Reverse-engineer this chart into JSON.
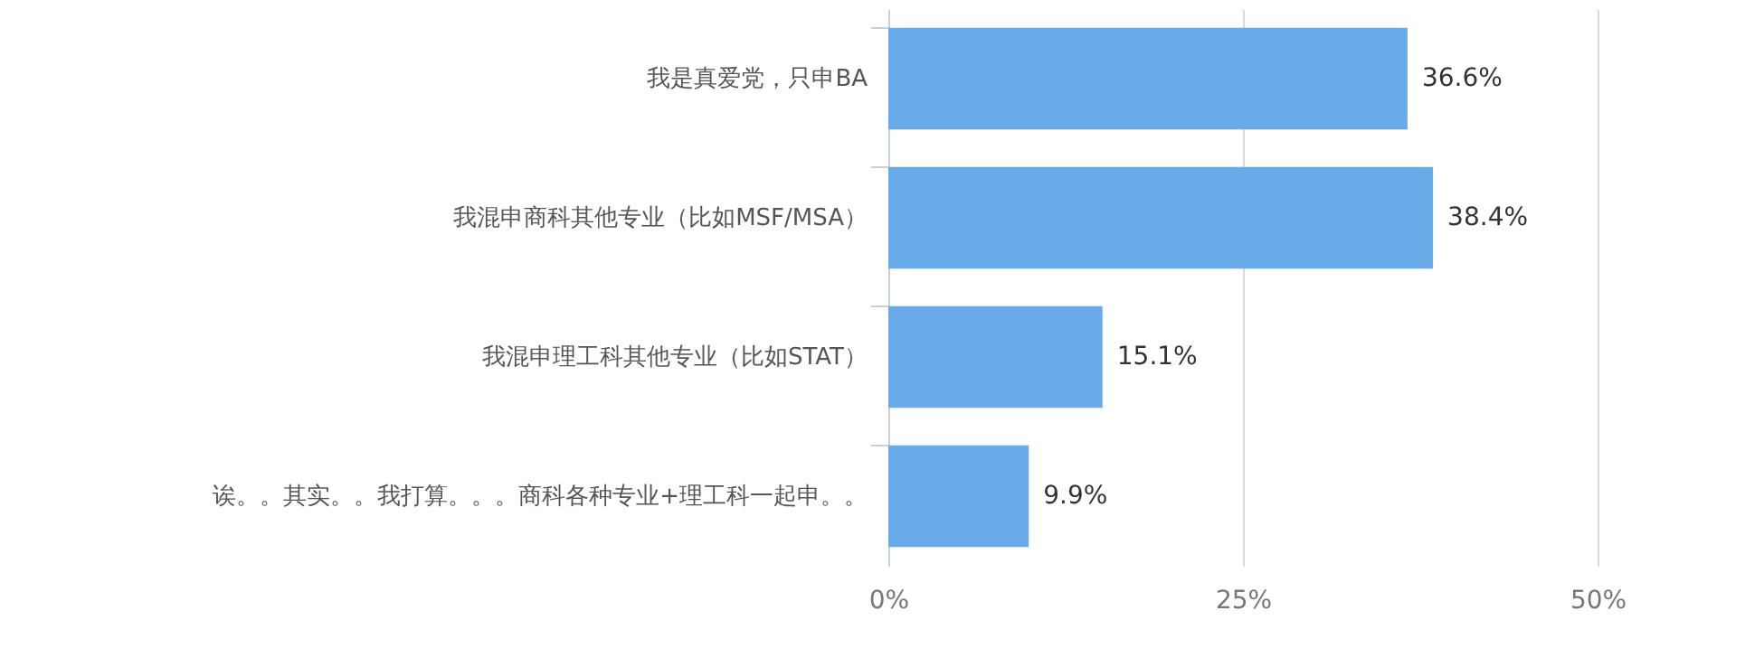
{
  "chart_data": {
    "type": "bar",
    "orientation": "horizontal",
    "categories": [
      "我是真爱党，只申BA",
      "我混申商科其他专业（比如MSF/MSA）",
      "我混申理工科其他专业（比如STAT）",
      "诶。。其实。。我打算。。。商科各种专业+理工科一起申。。"
    ],
    "values": [
      36.6,
      38.4,
      15.1,
      9.9
    ],
    "value_labels": [
      "36.6%",
      "38.4%",
      "15.1%",
      "9.9%"
    ],
    "color": "#68abe8",
    "xlim": [
      0,
      50
    ],
    "xticks": [
      {
        "value": 0,
        "label": "0%"
      },
      {
        "value": 25,
        "label": "25%"
      },
      {
        "value": 50,
        "label": "50%"
      }
    ],
    "grid": "x"
  }
}
